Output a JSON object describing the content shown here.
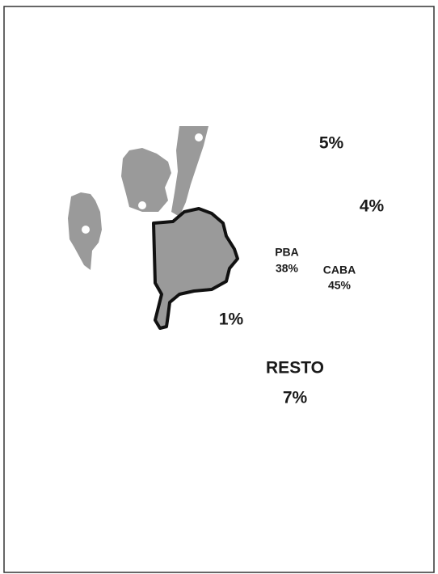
{
  "labels": [
    {
      "value": "5%"
    },
    {
      "value": "4%"
    },
    {
      "name": "PBA",
      "value": "38%"
    },
    {
      "name": "CABA",
      "value": "45%"
    },
    {
      "value": "1%"
    },
    {
      "name": "RESTO",
      "value": "7%"
    }
  ]
}
